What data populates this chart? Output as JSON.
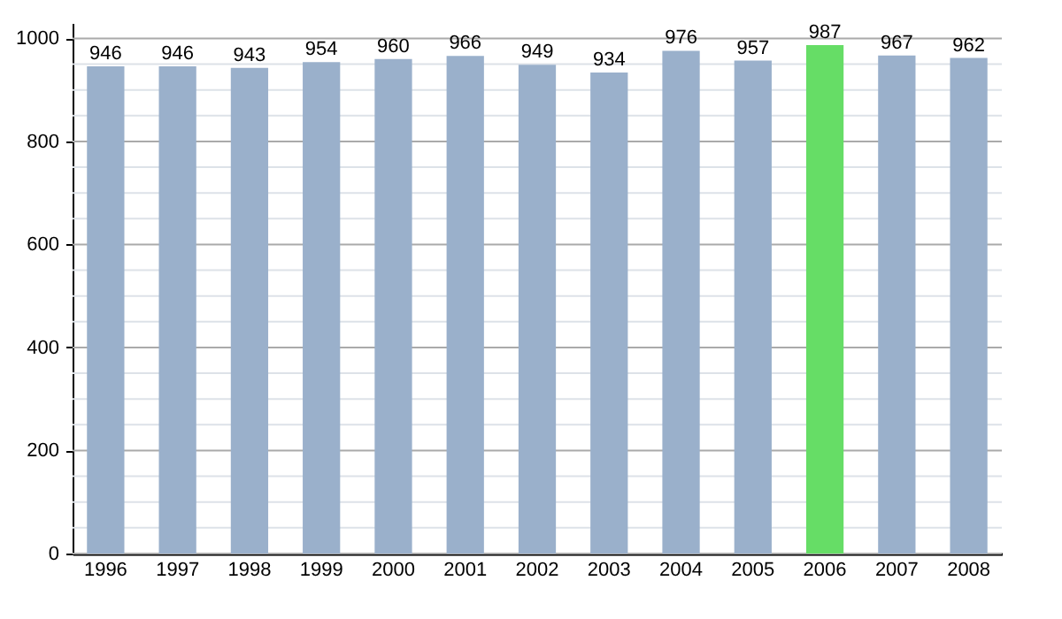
{
  "chart_data": {
    "type": "bar",
    "categories": [
      "1996",
      "1997",
      "1998",
      "1999",
      "2000",
      "2001",
      "2002",
      "2003",
      "2004",
      "2005",
      "2006",
      "2007",
      "2008"
    ],
    "values": [
      946,
      946,
      943,
      954,
      960,
      966,
      949,
      934,
      976,
      957,
      987,
      967,
      962
    ],
    "colors": [
      "#9ab0cb",
      "#9ab0cb",
      "#9ab0cb",
      "#9ab0cb",
      "#9ab0cb",
      "#9ab0cb",
      "#9ab0cb",
      "#9ab0cb",
      "#9ab0cb",
      "#9ab0cb",
      "#66dd66",
      "#9ab0cb",
      "#9ab0cb"
    ],
    "ylim": [
      0,
      1030
    ],
    "yticks": [
      0,
      {
        "value": 50,
        "label": null
      },
      {
        "value": 100,
        "label": null
      },
      {
        "value": 150,
        "label": null
      },
      200,
      {
        "value": 250,
        "label": null
      },
      {
        "value": 300,
        "label": null
      },
      {
        "value": 350,
        "label": null
      },
      400,
      {
        "value": 450,
        "label": null
      },
      {
        "value": 500,
        "label": null
      },
      {
        "value": 550,
        "label": null
      },
      600,
      {
        "value": 650,
        "label": null
      },
      {
        "value": 700,
        "label": null
      },
      {
        "value": 750,
        "label": null
      },
      800,
      {
        "value": 850,
        "label": null
      },
      {
        "value": 900,
        "label": null
      },
      {
        "value": 950,
        "label": null
      },
      1000
    ],
    "grid": true,
    "data_labels": true
  }
}
